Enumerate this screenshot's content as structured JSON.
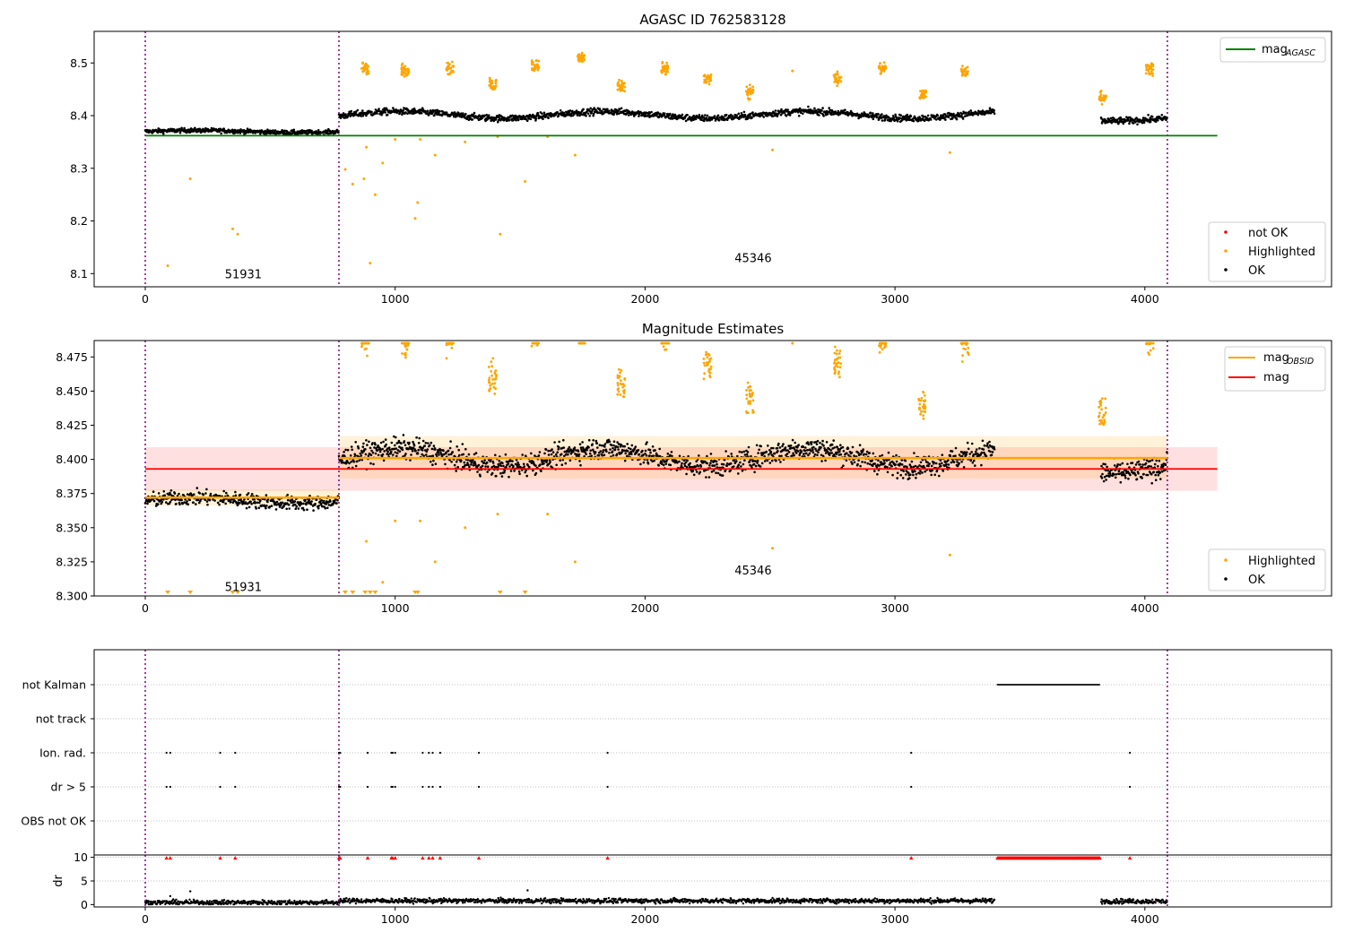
{
  "chart_data": [
    {
      "type": "scatter",
      "title": "AGASC ID 762583128",
      "xlabel": "",
      "ylabel": "",
      "xlim": [
        -200,
        4750
      ],
      "ylim": [
        8.075,
        8.56
      ],
      "xticks": [
        "0",
        "1000",
        "2000",
        "3000",
        "4000"
      ],
      "yticks": [
        "8.1",
        "8.2",
        "8.3",
        "8.4",
        "8.5"
      ],
      "obs_boundaries": [
        0,
        775,
        4090
      ],
      "obs_labels": [
        {
          "text": "51931",
          "x": 390,
          "y": 8.1
        },
        {
          "text": "45346",
          "x": 2430,
          "y": 8.13
        }
      ],
      "reference_line": {
        "name": "mag_AGASC",
        "value": 8.362,
        "x_range": [
          0,
          4290
        ],
        "color": "#008000"
      },
      "legend_lines": [
        {
          "name": "mag",
          "subscript": "AGASC",
          "color": "#008000"
        }
      ],
      "legend_points": [
        {
          "name": "not OK",
          "color": "#ff0000"
        },
        {
          "name": "Highlighted",
          "color": "#ffa500"
        },
        {
          "name": "OK",
          "color": "#000000"
        }
      ],
      "ok_segments": [
        {
          "x": [
            0,
            775
          ],
          "y": [
            8.368,
            8.372
          ],
          "noise": 0.006
        },
        {
          "x": [
            775,
            3400
          ],
          "y": [
            8.395,
            8.408
          ],
          "noise": 0.009
        },
        {
          "x": [
            3825,
            4090
          ],
          "y": [
            8.39,
            8.4
          ],
          "noise": 0.009
        }
      ],
      "highlighted_clusters": [
        {
          "x": 880,
          "y": 8.49
        },
        {
          "x": 1040,
          "y": 8.485
        },
        {
          "x": 1220,
          "y": 8.49
        },
        {
          "x": 1390,
          "y": 8.46
        },
        {
          "x": 1560,
          "y": 8.495
        },
        {
          "x": 1745,
          "y": 8.51
        },
        {
          "x": 1905,
          "y": 8.455
        },
        {
          "x": 2080,
          "y": 8.49
        },
        {
          "x": 2250,
          "y": 8.47
        },
        {
          "x": 2420,
          "y": 8.445
        },
        {
          "x": 2770,
          "y": 8.47
        },
        {
          "x": 2950,
          "y": 8.49
        },
        {
          "x": 3110,
          "y": 8.44
        },
        {
          "x": 3280,
          "y": 8.485
        },
        {
          "x": 3830,
          "y": 8.435
        },
        {
          "x": 4020,
          "y": 8.49
        }
      ],
      "highlighted_outliers": [
        [
          90,
          8.115
        ],
        [
          180,
          8.28
        ],
        [
          350,
          8.185
        ],
        [
          370,
          8.175
        ],
        [
          800,
          8.298
        ],
        [
          830,
          8.27
        ],
        [
          875,
          8.28
        ],
        [
          885,
          8.34
        ],
        [
          900,
          8.12
        ],
        [
          920,
          8.25
        ],
        [
          950,
          8.31
        ],
        [
          1000,
          8.355
        ],
        [
          1080,
          8.205
        ],
        [
          1090,
          8.235
        ],
        [
          1100,
          8.355
        ],
        [
          1160,
          8.325
        ],
        [
          1280,
          8.35
        ],
        [
          1410,
          8.36
        ],
        [
          1420,
          8.175
        ],
        [
          1520,
          8.275
        ],
        [
          1610,
          8.36
        ],
        [
          1720,
          8.325
        ],
        [
          2510,
          8.335
        ],
        [
          2590,
          8.485
        ],
        [
          3220,
          8.33
        ]
      ]
    },
    {
      "type": "scatter",
      "title": "Magnitude Estimates",
      "xlabel": "",
      "ylabel": "",
      "xlim": [
        -200,
        4750
      ],
      "ylim": [
        8.3,
        8.487
      ],
      "xticks": [
        "0",
        "1000",
        "2000",
        "3000",
        "4000"
      ],
      "yticks": [
        "8.300",
        "8.325",
        "8.350",
        "8.375",
        "8.400",
        "8.425",
        "8.450",
        "8.475"
      ],
      "obs_boundaries": [
        0,
        775,
        4090
      ],
      "obs_labels": [
        {
          "text": "51931",
          "x": 390,
          "y": 8.307
        },
        {
          "text": "45346",
          "x": 2430,
          "y": 8.319
        }
      ],
      "mag_line": {
        "name": "mag",
        "value": 8.393,
        "band": [
          8.377,
          8.409
        ],
        "x_range": [
          0,
          4290
        ],
        "color": "#ff0000"
      },
      "obsid_mags": [
        {
          "x_range": [
            0,
            775
          ],
          "value": 8.372,
          "band": [
            8.366,
            8.378
          ]
        },
        {
          "x_range": [
            775,
            4090
          ],
          "value": 8.401,
          "band": [
            8.386,
            8.417
          ]
        }
      ],
      "legend_lines": [
        {
          "name": "mag",
          "subscript": "OBSID",
          "color": "#ffa500"
        },
        {
          "name": "mag",
          "subscript": "",
          "color": "#ff0000"
        }
      ],
      "legend_points": [
        {
          "name": "Highlighted",
          "color": "#ffa500"
        },
        {
          "name": "OK",
          "color": "#000000"
        }
      ],
      "off_scale_low_x": [
        90,
        180,
        350,
        370,
        800,
        830,
        880,
        900,
        920,
        1080,
        1090,
        1420,
        1520
      ]
    },
    {
      "type": "scatter",
      "title": "",
      "xlim": [
        -200,
        4750
      ],
      "categories": [
        "not Kalman",
        "not track",
        "Ion. rad.",
        "dr > 5",
        "OBS not OK"
      ],
      "flags": {
        "not Kalman": [
          [
            3410,
            3820
          ]
        ],
        "not track": [],
        "Ion. rad.": [
          85,
          100,
          300,
          360,
          775,
          780,
          890,
          985,
          990,
          1000,
          1110,
          1135,
          1150,
          1180,
          1335,
          1850,
          3065,
          3940
        ],
        "dr > 5": [
          85,
          100,
          300,
          360,
          775,
          780,
          890,
          985,
          990,
          1000,
          1110,
          1135,
          1150,
          1180,
          1335,
          1850,
          3065,
          3940
        ],
        "OBS not OK": []
      }
    },
    {
      "type": "scatter",
      "title": "",
      "xlabel": "",
      "ylabel": "dr",
      "xlim": [
        -200,
        4750
      ],
      "ylim": [
        -0.5,
        10.5
      ],
      "xticks": [
        "0",
        "1000",
        "2000",
        "3000",
        "4000"
      ],
      "yticks": [
        "0",
        "5",
        "10"
      ],
      "ok_segments": [
        {
          "x": [
            0,
            775
          ],
          "y": 0.45
        },
        {
          "x": [
            775,
            3400
          ],
          "y": 0.8
        },
        {
          "x": [
            3825,
            4090
          ],
          "y": 0.7
        }
      ],
      "clipped_high_x": [
        85,
        100,
        300,
        360,
        775,
        780,
        890,
        985,
        990,
        1000,
        1110,
        1135,
        1150,
        1180,
        1335,
        1850,
        3065,
        3940
      ],
      "clipped_high_range": [
        3410,
        3820
      ],
      "outliers": [
        [
          100,
          1.8
        ],
        [
          180,
          2.8
        ],
        [
          1530,
          3.0
        ]
      ]
    }
  ]
}
